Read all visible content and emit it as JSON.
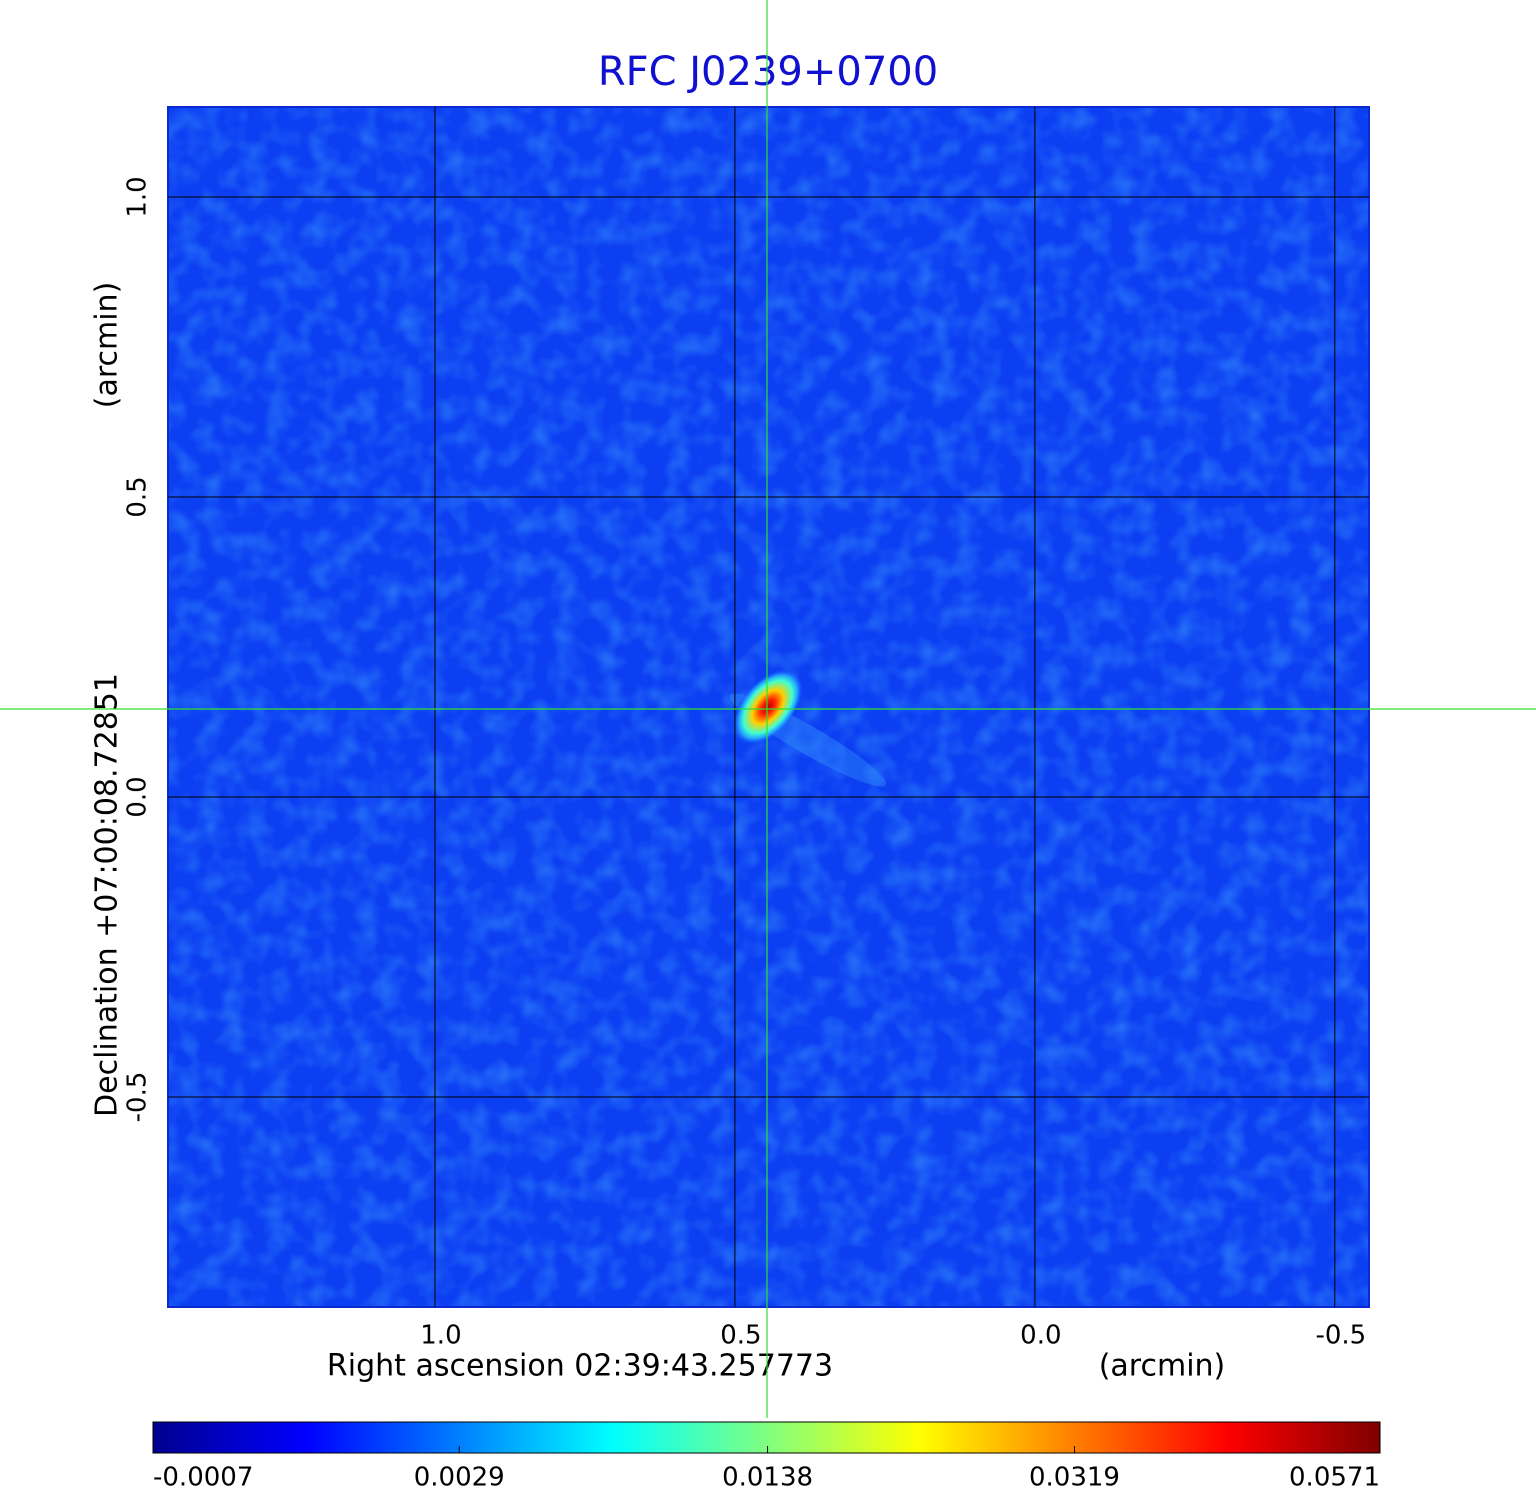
{
  "chart_data": {
    "type": "image",
    "title": "RFC J0239+0700",
    "x_label": "Right ascension  02:39:43.257773",
    "x_unit": "(arcmin)",
    "y_label": "Declination  +07:00:08.72851",
    "y_unit": "(arcmin)",
    "xlim": [
      1.445,
      -0.557
    ],
    "ylim": [
      -0.85,
      1.15
    ],
    "xticks": [
      {
        "value": 1.0,
        "label": "1.0"
      },
      {
        "value": 0.5,
        "label": "0.5"
      },
      {
        "value": 0.0,
        "label": "0.0"
      },
      {
        "value": -0.5,
        "label": "-0.5"
      }
    ],
    "yticks": [
      {
        "value": 1.0,
        "label": "1.0"
      },
      {
        "value": 0.5,
        "label": "0.5"
      },
      {
        "value": 0.0,
        "label": "0.0"
      },
      {
        "value": -0.5,
        "label": "-0.5"
      }
    ],
    "grid": true,
    "colorbar": {
      "lim": [
        -0.0007,
        0.0571
      ],
      "ticks": [
        -0.0007,
        0.0029,
        0.0138,
        0.0319,
        0.0571
      ],
      "stretch": "sqrt",
      "colormap": "jet"
    }
  }
}
